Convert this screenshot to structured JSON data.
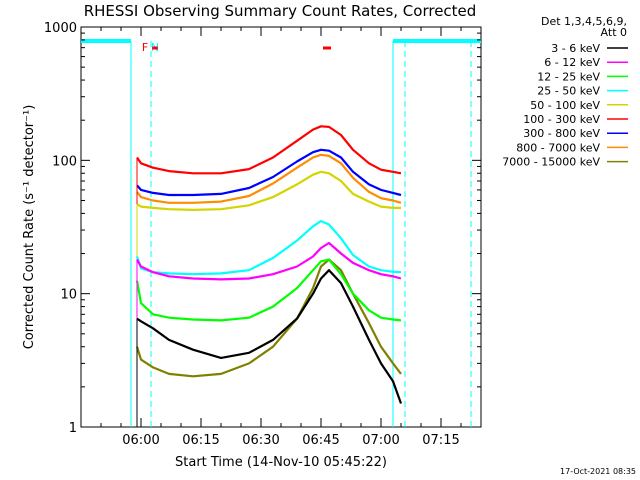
{
  "chart_data": {
    "type": "line",
    "title": "RHESSI Observing Summary Count Rates, Corrected",
    "xlabel": "Start Time (14-Nov-10 05:45:22)",
    "ylabel": "Corrected Count Rate (s⁻¹ detector⁻¹)",
    "yscale": "log",
    "ylim": [
      1,
      1000
    ],
    "xlim_minutes_after_0545": [
      0,
      100
    ],
    "y_ticks": [
      {
        "value": 1,
        "label": "1"
      },
      {
        "value": 10,
        "label": "10"
      },
      {
        "value": 100,
        "label": "100"
      },
      {
        "value": 1000,
        "label": "1000"
      }
    ],
    "x_ticks": [
      {
        "minutes": 15,
        "label": "06:00"
      },
      {
        "minutes": 30,
        "label": "06:15"
      },
      {
        "minutes": 45,
        "label": "06:30"
      },
      {
        "minutes": 60,
        "label": "06:45"
      },
      {
        "minutes": 75,
        "label": "07:00"
      },
      {
        "minutes": 90,
        "label": "07:15"
      }
    ],
    "legend": {
      "placement": "right",
      "header_line1": "Det 1,3,4,5,6,9,",
      "header_line2": "Att 0"
    },
    "series": [
      {
        "name": "3 - 6 keV",
        "color": "#000000",
        "x": [
          14,
          15,
          18,
          22,
          28,
          35,
          42,
          48,
          54,
          58,
          60,
          62,
          65,
          68,
          72,
          75,
          78,
          80
        ],
        "y": [
          6.5,
          6.2,
          5.5,
          4.5,
          3.8,
          3.3,
          3.6,
          4.5,
          6.5,
          10,
          13,
          15,
          12,
          8,
          4.5,
          3,
          2.2,
          1.5
        ]
      },
      {
        "name": "6 - 12 keV",
        "color": "#ff00ff",
        "x": [
          14,
          15,
          18,
          22,
          28,
          35,
          42,
          48,
          54,
          58,
          60,
          62,
          65,
          68,
          72,
          75,
          78,
          80
        ],
        "y": [
          18,
          16,
          14.5,
          13.5,
          13,
          12.8,
          13,
          14,
          16,
          19,
          22,
          24,
          20,
          17,
          15,
          14,
          13.5,
          13
        ]
      },
      {
        "name": "12 - 25 keV",
        "color": "#00ff00",
        "x": [
          14,
          15,
          18,
          22,
          28,
          35,
          42,
          48,
          54,
          58,
          60,
          62,
          65,
          68,
          72,
          75,
          78,
          80
        ],
        "y": [
          12.5,
          8.5,
          7,
          6.6,
          6.4,
          6.3,
          6.6,
          8,
          11,
          15,
          17.5,
          18,
          14,
          10,
          7.5,
          6.6,
          6.4,
          6.3
        ]
      },
      {
        "name": "25 - 50 keV",
        "color": "#00ffff",
        "x": [
          14,
          15,
          18,
          22,
          28,
          35,
          42,
          48,
          54,
          58,
          60,
          62,
          65,
          68,
          72,
          75,
          78,
          80
        ],
        "y": [
          19,
          15.5,
          14.5,
          14.2,
          14,
          14.2,
          15,
          18.5,
          25,
          32,
          35,
          33,
          26,
          19.5,
          16,
          15,
          14.6,
          14.5
        ]
      },
      {
        "name": "50 - 100 keV",
        "color": "#d4d400",
        "x": [
          14,
          15,
          18,
          22,
          28,
          35,
          42,
          48,
          54,
          58,
          60,
          62,
          65,
          68,
          72,
          75,
          78,
          80
        ],
        "y": [
          47,
          45,
          44,
          43,
          42.5,
          43,
          46,
          53,
          66,
          78,
          82,
          80,
          70,
          56,
          49,
          45,
          44,
          44
        ]
      },
      {
        "name": "100 - 300 keV",
        "color": "#ff0000",
        "x": [
          14,
          15,
          18,
          22,
          28,
          35,
          42,
          48,
          54,
          58,
          60,
          62,
          65,
          68,
          72,
          75,
          78,
          80
        ],
        "y": [
          105,
          95,
          88,
          83,
          80,
          80,
          86,
          105,
          140,
          170,
          180,
          178,
          155,
          120,
          95,
          85,
          82,
          80
        ]
      },
      {
        "name": "300 - 800 keV",
        "color": "#0000ff",
        "x": [
          14,
          15,
          18,
          22,
          28,
          35,
          42,
          48,
          54,
          58,
          60,
          62,
          65,
          68,
          72,
          75,
          78,
          80
        ],
        "y": [
          65,
          60,
          57,
          55,
          55,
          56,
          62,
          75,
          98,
          115,
          120,
          118,
          105,
          82,
          66,
          60,
          57,
          55
        ]
      },
      {
        "name": "800 - 7000 keV",
        "color": "#ff8c00",
        "x": [
          14,
          15,
          18,
          22,
          28,
          35,
          42,
          48,
          54,
          58,
          60,
          62,
          65,
          68,
          72,
          75,
          78,
          80
        ],
        "y": [
          58,
          53,
          50,
          48,
          48,
          49,
          54,
          67,
          88,
          105,
          110,
          108,
          95,
          74,
          58,
          52,
          50,
          48
        ]
      },
      {
        "name": "7000 - 15000 keV",
        "color": "#808000",
        "x": [
          14,
          15,
          18,
          22,
          28,
          35,
          42,
          48,
          54,
          58,
          60,
          62,
          65,
          68,
          72,
          75,
          78,
          80
        ],
        "y": [
          4,
          3.2,
          2.8,
          2.5,
          2.4,
          2.5,
          3,
          4,
          6.5,
          11,
          16,
          18,
          15,
          10,
          6,
          4,
          3,
          2.5
        ]
      }
    ],
    "annotations": [
      {
        "type": "night-bar",
        "color": "#00ffff",
        "x": [
          0,
          12.5
        ]
      },
      {
        "type": "night-bar",
        "color": "#00ffff",
        "x": [
          78,
          100
        ]
      },
      {
        "type": "vline-solid",
        "color": "#00ffff",
        "x": 12.5
      },
      {
        "type": "vline-solid",
        "color": "#00ffff",
        "x": 78
      },
      {
        "type": "vline-dashed",
        "color": "#00ffff",
        "x": 17.5
      },
      {
        "type": "vline-dashed",
        "color": "#00ffff",
        "x": 81
      },
      {
        "type": "vline-dashed",
        "color": "#00ffff",
        "x": 97.5
      },
      {
        "type": "label",
        "text": "F",
        "color": "#ff0000",
        "x": 16
      },
      {
        "type": "label",
        "text": "N",
        "color": "#00ffff",
        "x": 18.5
      },
      {
        "type": "flag-bar",
        "color": "#ff0000",
        "x": [
          17.8,
          19.2
        ]
      },
      {
        "type": "flag-bar",
        "color": "#ff0000",
        "x": [
          60.5,
          62.5
        ]
      }
    ]
  },
  "footer": {
    "timestamp": "17-Oct-2021 08:35"
  }
}
